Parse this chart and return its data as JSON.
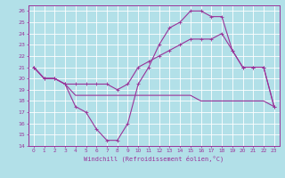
{
  "title": "",
  "xlabel": "Windchill (Refroidissement éolien,°C)",
  "xlim": [
    -0.5,
    23.5
  ],
  "ylim": [
    14,
    26.5
  ],
  "yticks": [
    14,
    15,
    16,
    17,
    18,
    19,
    20,
    21,
    22,
    23,
    24,
    25,
    26
  ],
  "xticks": [
    0,
    1,
    2,
    3,
    4,
    5,
    6,
    7,
    8,
    9,
    10,
    11,
    12,
    13,
    14,
    15,
    16,
    17,
    18,
    19,
    20,
    21,
    22,
    23
  ],
  "bg_color": "#b2e0e8",
  "grid_color": "#ffffff",
  "line_color": "#993399",
  "line1_x": [
    0,
    1,
    2,
    3,
    4,
    5,
    6,
    7,
    8,
    9,
    10,
    11,
    12,
    13,
    14,
    15,
    16,
    17,
    18,
    19,
    20,
    21,
    22,
    23
  ],
  "line1_y": [
    21,
    20,
    20,
    19.5,
    18.5,
    18.5,
    18.5,
    18.5,
    18.5,
    18.5,
    18.5,
    18.5,
    18.5,
    18.5,
    18.5,
    18.5,
    18.0,
    18.0,
    18.0,
    18.0,
    18.0,
    18.0,
    18.0,
    17.5
  ],
  "line2_x": [
    0,
    1,
    2,
    3,
    4,
    5,
    6,
    7,
    8,
    9,
    10,
    11,
    12,
    13,
    14,
    15,
    16,
    17,
    18,
    19,
    20,
    21,
    22,
    23
  ],
  "line2_y": [
    21,
    20,
    20,
    19.5,
    17.5,
    17,
    15.5,
    14.5,
    14.5,
    16,
    19.5,
    21,
    23,
    24.5,
    25,
    26,
    26,
    25.5,
    25.5,
    22.5,
    21,
    21,
    21,
    17.5
  ],
  "line3_x": [
    0,
    1,
    2,
    3,
    4,
    5,
    6,
    7,
    8,
    9,
    10,
    11,
    12,
    13,
    14,
    15,
    16,
    17,
    18,
    19,
    20,
    21,
    22,
    23
  ],
  "line3_y": [
    21,
    20,
    20,
    19.5,
    19.5,
    19.5,
    19.5,
    19.5,
    19.0,
    19.5,
    21,
    21.5,
    22,
    22.5,
    23,
    23.5,
    23.5,
    23.5,
    24,
    22.5,
    21,
    21,
    21,
    17.5
  ],
  "marker": "+",
  "marker_size": 2.5,
  "linewidth": 0.8
}
